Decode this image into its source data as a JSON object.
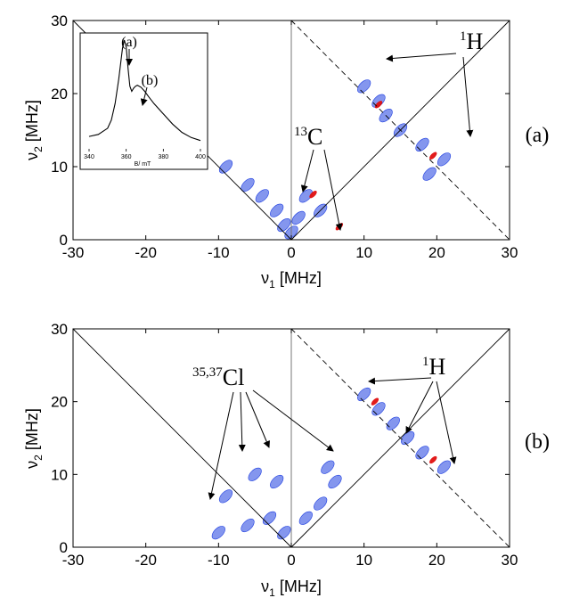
{
  "chart_data": [
    {
      "type": "scatter",
      "panel_label": "(a)",
      "xlabel_symbol": "ν",
      "xlabel_sub": "1",
      "xlabel_unit": " [MHz]",
      "ylabel_symbol": "ν",
      "ylabel_sub": "2",
      "ylabel_unit": " [MHz]",
      "xlim": [
        -30,
        30
      ],
      "ylim": [
        0,
        30
      ],
      "xticks": [
        "-30",
        "-20",
        "-10",
        "0",
        "10",
        "20",
        "30"
      ],
      "yticks": [
        "0",
        "10",
        "20",
        "30"
      ],
      "annotations": [
        {
          "text_sup": "1",
          "text": "H"
        },
        {
          "text_sup": "13",
          "text": "C"
        }
      ],
      "series": [
        {
          "color": "#1f3fe0",
          "points": [
            [
              12,
              19
            ],
            [
              10,
              21
            ],
            [
              13,
              17
            ],
            [
              15,
              15
            ],
            [
              18,
              13
            ],
            [
              21,
              11
            ],
            [
              19,
              9
            ],
            [
              -2,
              4
            ],
            [
              -4,
              6
            ],
            [
              -6,
              7.5
            ],
            [
              -9,
              10
            ],
            [
              -1,
              2
            ],
            [
              1,
              3
            ],
            [
              0,
              1
            ],
            [
              2,
              6
            ],
            [
              4,
              4
            ]
          ]
        },
        {
          "color": "#e01010",
          "points": [
            [
              12,
              18.5
            ],
            [
              19.5,
              11.5
            ],
            [
              3,
              6.2
            ],
            [
              6.6,
              1.8
            ]
          ]
        }
      ],
      "inset": {
        "type": "line",
        "xlabel": "B/ mT",
        "xticks": [
          "340",
          "360",
          "380",
          "400"
        ],
        "xlim": [
          340,
          400
        ],
        "labels": [
          "(a)",
          "(b)"
        ],
        "x": [
          340,
          345,
          350,
          352,
          354,
          356,
          358,
          359,
          360,
          361,
          362,
          363,
          364,
          365,
          366,
          368,
          370,
          372,
          375,
          380,
          385,
          390,
          395,
          400
        ],
        "y": [
          0.06,
          0.08,
          0.14,
          0.22,
          0.38,
          0.62,
          0.92,
          1.0,
          0.93,
          0.72,
          0.55,
          0.5,
          0.53,
          0.55,
          0.56,
          0.54,
          0.5,
          0.45,
          0.38,
          0.28,
          0.18,
          0.1,
          0.05,
          0.02
        ]
      }
    },
    {
      "type": "scatter",
      "panel_label": "(b)",
      "xlabel_symbol": "ν",
      "xlabel_sub": "1",
      "xlabel_unit": " [MHz]",
      "ylabel_symbol": "ν",
      "ylabel_sub": "2",
      "ylabel_unit": " [MHz]",
      "xlim": [
        -30,
        30
      ],
      "ylim": [
        0,
        30
      ],
      "xticks": [
        "-30",
        "-20",
        "-10",
        "0",
        "10",
        "20",
        "30"
      ],
      "yticks": [
        "0",
        "10",
        "20",
        "30"
      ],
      "annotations": [
        {
          "text_sup": "1",
          "text": "H"
        },
        {
          "text_sup": "35,37",
          "text": "Cl"
        }
      ],
      "series": [
        {
          "color": "#1f3fe0",
          "points": [
            [
              10,
              21
            ],
            [
              12,
              19
            ],
            [
              14,
              17
            ],
            [
              16,
              15
            ],
            [
              18,
              13
            ],
            [
              21,
              11
            ],
            [
              -10,
              2
            ],
            [
              -6,
              3
            ],
            [
              -3,
              4
            ],
            [
              -1,
              2
            ],
            [
              2,
              4
            ],
            [
              4,
              6
            ],
            [
              6,
              9
            ],
            [
              5,
              11
            ],
            [
              -5,
              10
            ],
            [
              -2,
              9
            ],
            [
              -9,
              7
            ]
          ]
        },
        {
          "color": "#e01010",
          "points": [
            [
              11.5,
              20
            ],
            [
              19.5,
              12
            ]
          ]
        }
      ]
    }
  ]
}
